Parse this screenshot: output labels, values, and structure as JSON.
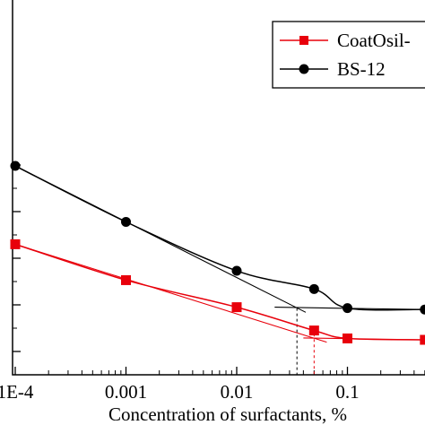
{
  "chart_data": {
    "type": "line",
    "title": "",
    "xlabel": "Concentration of surfactants, %",
    "ylabel": "",
    "x_scale": "log",
    "xlim": [
      0.0001,
      0.5
    ],
    "ylim": [
      25,
      75
    ],
    "x_tick_labels": [
      "1E-4",
      "0.001",
      "0.01",
      "0.1"
    ],
    "x_tick_values": [
      0.0001,
      0.001,
      0.01,
      0.1
    ],
    "grid": false,
    "legend_position": "top-right",
    "series": [
      {
        "name": "CoatOsil-",
        "color": "#e8000b",
        "marker": "square",
        "x": [
          0.0001,
          0.001,
          0.01,
          0.05,
          0.1,
          0.5
        ],
        "y": [
          53.0,
          45.3,
          39.5,
          34.5,
          32.8,
          32.5
        ]
      },
      {
        "name": "BS-12",
        "color": "#000000",
        "marker": "circle",
        "x": [
          0.0001,
          0.001,
          0.01,
          0.05,
          0.1,
          0.5
        ],
        "y": [
          69.8,
          57.8,
          47.3,
          43.4,
          39.3,
          39.0
        ]
      }
    ],
    "annotations": {
      "cmc_markers": [
        {
          "series": "BS-12",
          "x": 0.035,
          "color": "#000000"
        },
        {
          "series": "CoatOsil-",
          "x": 0.05,
          "color": "#e8000b"
        }
      ]
    }
  }
}
